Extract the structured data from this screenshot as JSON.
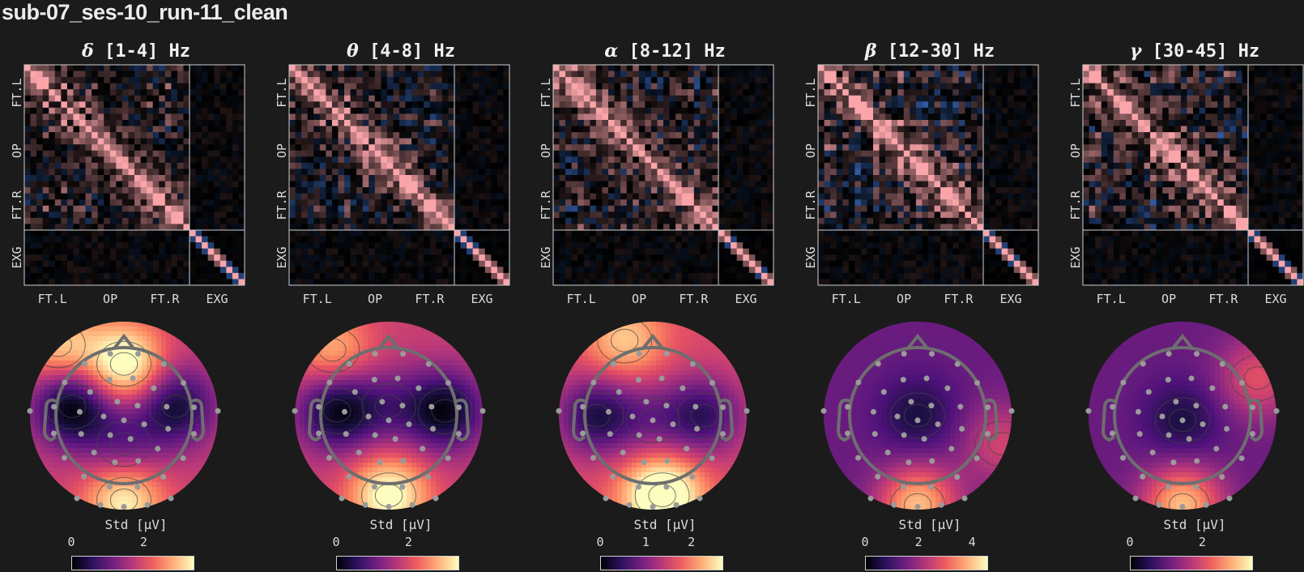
{
  "title": "sub-07_ses-10_run-11_clean",
  "chart_data": [
    {
      "type": "heatmap",
      "band_symbol": "δ",
      "band_range": "[1-4] Hz",
      "title": "δ [1-4] Hz",
      "groups": [
        "FT.L",
        "OP",
        "FT.R",
        "EXG"
      ],
      "matrix_seed": 11,
      "topomap": {
        "colorbar_label": "Std [μV]",
        "colorbar_ticks": [
          "0",
          "2"
        ],
        "colorbar_range": [
          0,
          3.4
        ],
        "blobs": [
          {
            "u": -0.55,
            "v": -0.1,
            "w": -0.55
          },
          {
            "u": 0.55,
            "v": -0.1,
            "w": -0.45
          },
          {
            "u": 0.0,
            "v": 0.3,
            "w": -0.25
          },
          {
            "u": 0.0,
            "v": -0.55,
            "w": 0.55
          },
          {
            "u": 0.0,
            "v": 0.9,
            "w": 0.45
          },
          {
            "u": -0.7,
            "v": -0.75,
            "w": 0.35
          }
        ],
        "base": 0.55
      }
    },
    {
      "type": "heatmap",
      "band_symbol": "θ",
      "band_range": "[4-8] Hz",
      "title": "θ [4-8] Hz",
      "groups": [
        "FT.L",
        "OP",
        "FT.R",
        "EXG"
      ],
      "matrix_seed": 23,
      "topomap": {
        "colorbar_label": "Std [μV]",
        "colorbar_ticks": [
          "0",
          "2"
        ],
        "colorbar_range": [
          0,
          3.4
        ],
        "blobs": [
          {
            "u": -0.55,
            "v": -0.05,
            "w": -0.5
          },
          {
            "u": 0.6,
            "v": -0.05,
            "w": -0.5
          },
          {
            "u": 0.0,
            "v": -0.1,
            "w": -0.2
          },
          {
            "u": 0.0,
            "v": 0.85,
            "w": 0.5
          },
          {
            "u": -0.6,
            "v": -0.7,
            "w": 0.3
          }
        ],
        "base": 0.55
      }
    },
    {
      "type": "heatmap",
      "band_symbol": "α",
      "band_range": "[8-12] Hz",
      "title": "α [8-12] Hz",
      "groups": [
        "FT.L",
        "OP",
        "FT.R",
        "EXG"
      ],
      "matrix_seed": 37,
      "topomap": {
        "colorbar_label": "Std [μV]",
        "colorbar_ticks": [
          "0",
          "1",
          "2"
        ],
        "colorbar_range": [
          0,
          2.7
        ],
        "blobs": [
          {
            "u": -0.6,
            "v": 0.0,
            "w": -0.45
          },
          {
            "u": 0.55,
            "v": 0.0,
            "w": -0.4
          },
          {
            "u": 0.0,
            "v": 0.05,
            "w": -0.2
          },
          {
            "u": 0.1,
            "v": 0.85,
            "w": 0.6
          },
          {
            "u": -0.3,
            "v": -0.8,
            "w": 0.3
          }
        ],
        "base": 0.6
      }
    },
    {
      "type": "heatmap",
      "band_symbol": "β",
      "band_range": "[12-30] Hz",
      "title": "β [12-30] Hz",
      "groups": [
        "FT.L",
        "OP",
        "FT.R",
        "EXG"
      ],
      "matrix_seed": 41,
      "topomap": {
        "colorbar_label": "Std [μV]",
        "colorbar_ticks": [
          "0",
          "2",
          "4"
        ],
        "colorbar_range": [
          0,
          4.6
        ],
        "blobs": [
          {
            "u": 0.0,
            "v": 0.0,
            "w": -0.2
          },
          {
            "u": 0.0,
            "v": 0.95,
            "w": 0.55
          },
          {
            "u": 0.9,
            "v": 0.3,
            "w": 0.25
          }
        ],
        "base": 0.32
      }
    },
    {
      "type": "heatmap",
      "band_symbol": "γ",
      "band_range": "[30-45] Hz",
      "title": "γ [30-45] Hz",
      "groups": [
        "FT.L",
        "OP",
        "FT.R",
        "EXG"
      ],
      "matrix_seed": 53,
      "topomap": {
        "colorbar_label": "Std [μV]",
        "colorbar_ticks": [
          "0",
          "2"
        ],
        "colorbar_range": [
          0,
          3.4
        ],
        "blobs": [
          {
            "u": 0.0,
            "v": 0.05,
            "w": -0.2
          },
          {
            "u": 0.0,
            "v": 0.95,
            "w": 0.55
          },
          {
            "u": 0.8,
            "v": -0.4,
            "w": 0.3
          }
        ],
        "base": 0.32
      }
    }
  ]
}
